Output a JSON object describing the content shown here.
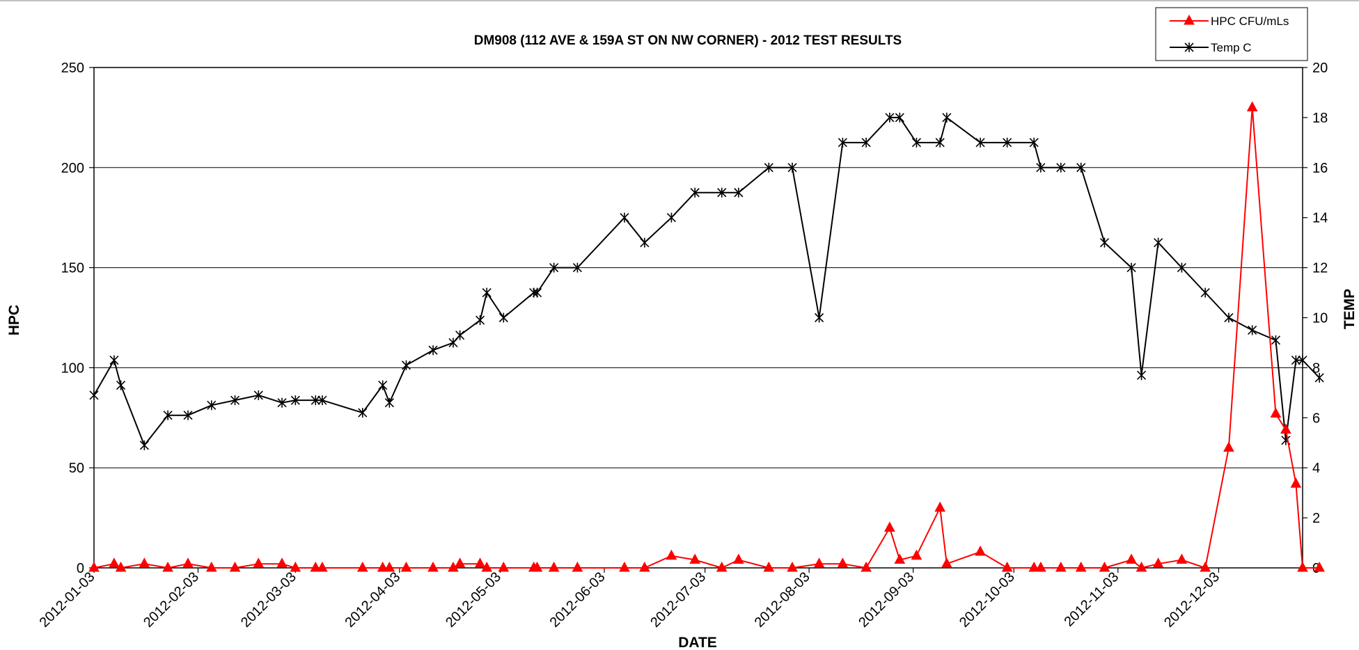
{
  "chart_data": {
    "type": "line",
    "title": "DM908 (112 AVE & 159A ST ON NW CORNER) - 2012 TEST RESULTS",
    "xlabel": "DATE",
    "ylabel_left": "HPC",
    "ylabel_right": "TEMP",
    "ylim_left": [
      0,
      250
    ],
    "ylim_right": [
      0,
      20
    ],
    "yticks_left": [
      "0",
      "50",
      "100",
      "150",
      "200",
      "250"
    ],
    "yticks_right": [
      "0",
      "2",
      "4",
      "6",
      "8",
      "10",
      "12",
      "14",
      "16",
      "18",
      "20"
    ],
    "xlim": [
      "2012-01-03",
      "2012-12-28"
    ],
    "xticks": [
      "2012-01-03",
      "2012-02-03",
      "2012-03-03",
      "2012-04-03",
      "2012-05-03",
      "2012-06-03",
      "2012-07-03",
      "2012-08-03",
      "2012-09-03",
      "2012-10-03",
      "2012-11-03",
      "2012-12-03"
    ],
    "grid": "horizontal",
    "legend_position": "top-right",
    "colors": {
      "hpc": "#ff0000",
      "temp": "#000000",
      "grid": "#000000"
    },
    "series": [
      {
        "name": "HPC CFU/mLs",
        "axis": "left",
        "marker": "triangle",
        "points": [
          [
            "2012-01-03",
            0
          ],
          [
            "2012-01-09",
            2
          ],
          [
            "2012-01-11",
            0
          ],
          [
            "2012-01-18",
            2
          ],
          [
            "2012-01-25",
            0
          ],
          [
            "2012-01-31",
            2
          ],
          [
            "2012-02-07",
            0
          ],
          [
            "2012-02-14",
            0
          ],
          [
            "2012-02-21",
            2
          ],
          [
            "2012-02-28",
            2
          ],
          [
            "2012-03-03",
            0
          ],
          [
            "2012-03-09",
            0
          ],
          [
            "2012-03-11",
            0
          ],
          [
            "2012-03-23",
            0
          ],
          [
            "2012-03-29",
            0
          ],
          [
            "2012-03-31",
            0
          ],
          [
            "2012-04-05",
            0
          ],
          [
            "2012-04-13",
            0
          ],
          [
            "2012-04-19",
            0
          ],
          [
            "2012-04-21",
            2
          ],
          [
            "2012-04-27",
            2
          ],
          [
            "2012-04-29",
            0
          ],
          [
            "2012-05-04",
            0
          ],
          [
            "2012-05-13",
            0
          ],
          [
            "2012-05-14",
            0
          ],
          [
            "2012-05-19",
            0
          ],
          [
            "2012-05-26",
            0
          ],
          [
            "2012-06-09",
            0
          ],
          [
            "2012-06-15",
            0
          ],
          [
            "2012-06-23",
            6
          ],
          [
            "2012-06-30",
            4
          ],
          [
            "2012-07-08",
            0
          ],
          [
            "2012-07-13",
            4
          ],
          [
            "2012-07-22",
            0
          ],
          [
            "2012-07-29",
            0
          ],
          [
            "2012-08-06",
            2
          ],
          [
            "2012-08-13",
            2
          ],
          [
            "2012-08-20",
            0
          ],
          [
            "2012-08-27",
            20
          ],
          [
            "2012-08-30",
            4
          ],
          [
            "2012-09-04",
            6
          ],
          [
            "2012-09-11",
            30
          ],
          [
            "2012-09-13",
            2
          ],
          [
            "2012-09-23",
            8
          ],
          [
            "2012-10-01",
            0
          ],
          [
            "2012-10-09",
            0
          ],
          [
            "2012-10-11",
            0
          ],
          [
            "2012-10-17",
            0
          ],
          [
            "2012-10-23",
            0
          ],
          [
            "2012-10-30",
            0
          ],
          [
            "2012-11-07",
            4
          ],
          [
            "2012-11-10",
            0
          ],
          [
            "2012-11-15",
            2
          ],
          [
            "2012-11-22",
            4
          ],
          [
            "2012-11-29",
            0
          ],
          [
            "2012-12-06",
            60
          ],
          [
            "2012-12-13",
            230
          ],
          [
            "2012-12-20",
            77
          ],
          [
            "2012-12-23",
            69
          ],
          [
            "2012-12-26",
            42
          ],
          [
            "2012-12-28",
            0
          ],
          [
            "2013-01-02",
            0
          ]
        ]
      },
      {
        "name": "Temp C",
        "axis": "right",
        "marker": "star",
        "points": [
          [
            "2012-01-03",
            6.9
          ],
          [
            "2012-01-09",
            8.3
          ],
          [
            "2012-01-11",
            7.3
          ],
          [
            "2012-01-18",
            4.9
          ],
          [
            "2012-01-25",
            6.1
          ],
          [
            "2012-01-31",
            6.1
          ],
          [
            "2012-02-07",
            6.5
          ],
          [
            "2012-02-14",
            6.7
          ],
          [
            "2012-02-21",
            6.9
          ],
          [
            "2012-02-28",
            6.6
          ],
          [
            "2012-03-03",
            6.7
          ],
          [
            "2012-03-09",
            6.7
          ],
          [
            "2012-03-11",
            6.7
          ],
          [
            "2012-03-23",
            6.2
          ],
          [
            "2012-03-29",
            7.3
          ],
          [
            "2012-03-31",
            6.6
          ],
          [
            "2012-04-05",
            8.1
          ],
          [
            "2012-04-13",
            8.7
          ],
          [
            "2012-04-19",
            9.0
          ],
          [
            "2012-04-21",
            9.3
          ],
          [
            "2012-04-27",
            9.9
          ],
          [
            "2012-04-29",
            11.0
          ],
          [
            "2012-05-04",
            10.0
          ],
          [
            "2012-05-13",
            11.0
          ],
          [
            "2012-05-14",
            11.0
          ],
          [
            "2012-05-19",
            12.0
          ],
          [
            "2012-05-26",
            12.0
          ],
          [
            "2012-06-09",
            14.0
          ],
          [
            "2012-06-15",
            13.0
          ],
          [
            "2012-06-23",
            14.0
          ],
          [
            "2012-06-30",
            15.0
          ],
          [
            "2012-07-08",
            15.0
          ],
          [
            "2012-07-13",
            15.0
          ],
          [
            "2012-07-22",
            16.0
          ],
          [
            "2012-07-29",
            16.0
          ],
          [
            "2012-08-06",
            10.0
          ],
          [
            "2012-08-13",
            17.0
          ],
          [
            "2012-08-20",
            17.0
          ],
          [
            "2012-08-27",
            18.0
          ],
          [
            "2012-08-30",
            18.0
          ],
          [
            "2012-09-04",
            17.0
          ],
          [
            "2012-09-11",
            17.0
          ],
          [
            "2012-09-13",
            18.0
          ],
          [
            "2012-09-23",
            17.0
          ],
          [
            "2012-10-01",
            17.0
          ],
          [
            "2012-10-09",
            17.0
          ],
          [
            "2012-10-11",
            16.0
          ],
          [
            "2012-10-17",
            16.0
          ],
          [
            "2012-10-23",
            16.0
          ],
          [
            "2012-10-30",
            13.0
          ],
          [
            "2012-11-07",
            12.0
          ],
          [
            "2012-11-10",
            7.7
          ],
          [
            "2012-11-15",
            13.0
          ],
          [
            "2012-11-22",
            12.0
          ],
          [
            "2012-11-29",
            11.0
          ],
          [
            "2012-12-06",
            10.0
          ],
          [
            "2012-12-13",
            9.5
          ],
          [
            "2012-12-20",
            9.1
          ],
          [
            "2012-12-23",
            5.1
          ],
          [
            "2012-12-26",
            8.3
          ],
          [
            "2012-12-28",
            8.3
          ],
          [
            "2013-01-02",
            7.6
          ]
        ]
      }
    ]
  }
}
